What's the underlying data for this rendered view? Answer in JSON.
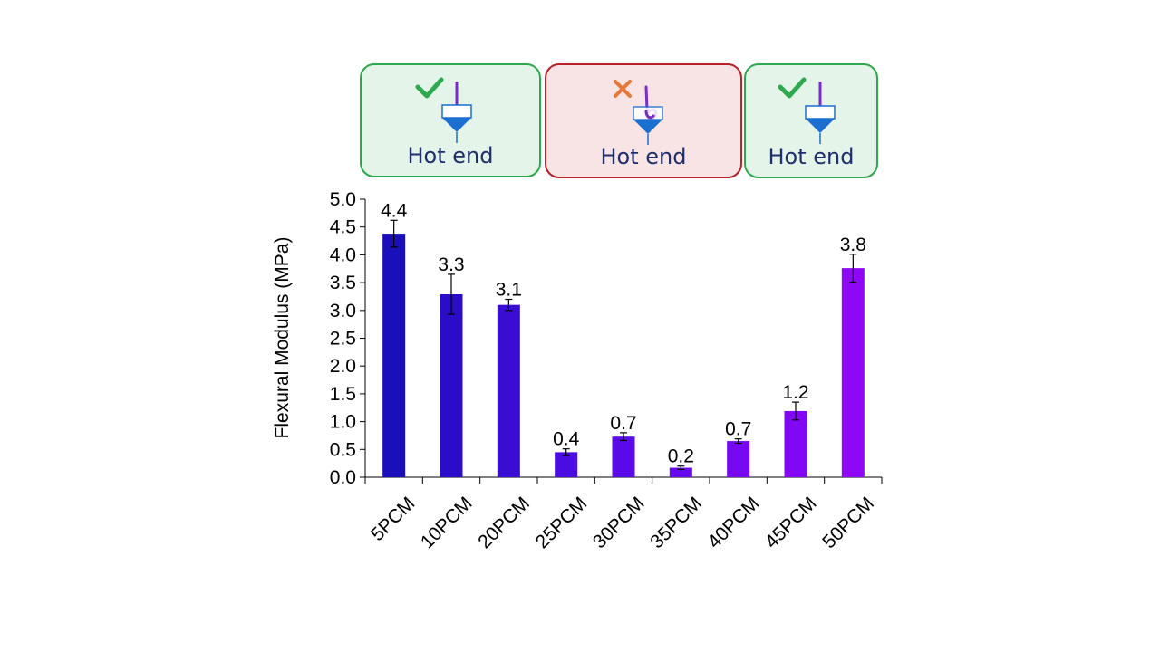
{
  "panels": [
    {
      "label": "Hot end",
      "status": "good",
      "mark_color": "#2ea84f",
      "status_icon": "check-icon",
      "filament": "straight"
    },
    {
      "label": "Hot end",
      "status": "bad",
      "mark_color": "#e8773a",
      "status_icon": "cross-icon",
      "filament": "curled"
    },
    {
      "label": "Hot end",
      "status": "good",
      "mark_color": "#2ea84f",
      "status_icon": "check-icon",
      "filament": "straight"
    }
  ],
  "colors": {
    "filament": "#7a2cc9",
    "nozzle": "#1a6fd0",
    "axis": "#000000",
    "text": "#000000"
  },
  "chart_data": {
    "type": "bar",
    "title": "",
    "xlabel": "",
    "ylabel": "Flexural Modulus (MPa)",
    "ylim": [
      0,
      5
    ],
    "yticks": [
      "0.0",
      "0.5",
      "1.0",
      "1.5",
      "2.0",
      "2.5",
      "3.0",
      "3.5",
      "4.0",
      "4.5",
      "5.0"
    ],
    "categories": [
      "5PCM",
      "10PCM",
      "20PCM",
      "25PCM",
      "30PCM",
      "35PCM",
      "40PCM",
      "45PCM",
      "50PCM"
    ],
    "values": [
      4.38,
      3.29,
      3.1,
      0.45,
      0.73,
      0.17,
      0.65,
      1.19,
      3.76
    ],
    "errors": [
      0.24,
      0.36,
      0.1,
      0.06,
      0.07,
      0.03,
      0.04,
      0.16,
      0.25
    ],
    "data_labels": [
      "4.4",
      "3.3",
      "3.1",
      "0.4",
      "0.7",
      "0.2",
      "0.7",
      "1.2",
      "3.8"
    ],
    "bar_colors": [
      "#1a0fb8",
      "#2b0cc8",
      "#3a0dd2",
      "#4a0ce0",
      "#5a0ae8",
      "#6808ee",
      "#7608f2",
      "#8208f5",
      "#8e08f6"
    ]
  }
}
